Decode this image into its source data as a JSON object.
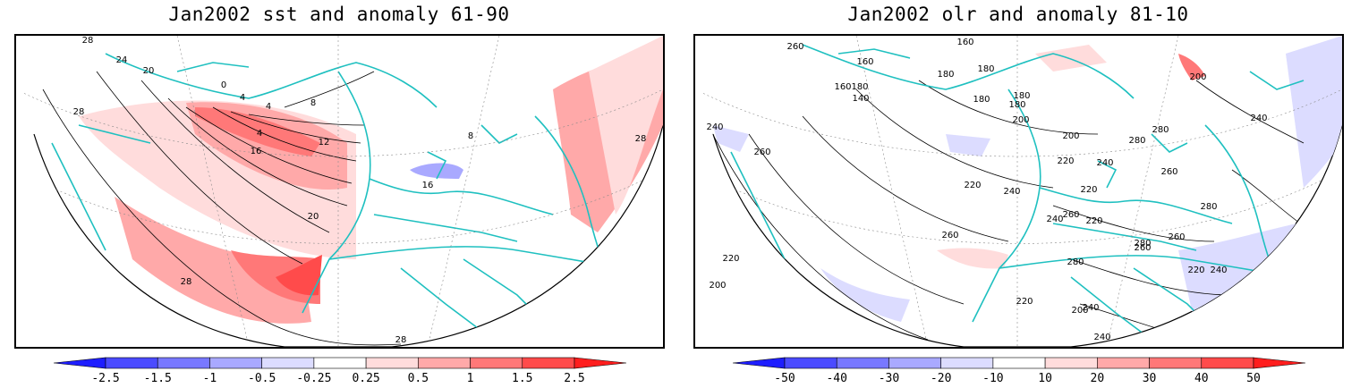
{
  "colors": {
    "coast": "#1fc0c0",
    "contour": "#000000",
    "grid": "#8a8a8a"
  },
  "panels": [
    {
      "id": "sst",
      "title": "Jan2002 sst and anomaly 61-90",
      "colorbar": {
        "labels": [
          "-2.5",
          "-1.5",
          "-1",
          "-0.5",
          "-0.25",
          "0.25",
          "0.5",
          "1",
          "1.5",
          "2.5"
        ],
        "colors": [
          "#1e1eff",
          "#4b4bff",
          "#7878ff",
          "#a9a9ff",
          "#dcdcff",
          "#ffffff",
          "#ffdcdc",
          "#ffa9a9",
          "#ff7878",
          "#ff4b4b",
          "#ff1e1e"
        ]
      },
      "contour_labels": [
        "28",
        "24",
        "20",
        "0",
        "4",
        "4",
        "8",
        "4",
        "16",
        "12",
        "20",
        "28",
        "28",
        "28",
        "16",
        "8",
        "28"
      ]
    },
    {
      "id": "olr",
      "title": "Jan2002 olr and anomaly 81-10",
      "colorbar": {
        "labels": [
          "-50",
          "-40",
          "-30",
          "-20",
          "-10",
          "10",
          "20",
          "30",
          "40",
          "50"
        ],
        "colors": [
          "#1e1eff",
          "#4b4bff",
          "#7878ff",
          "#a9a9ff",
          "#dcdcff",
          "#ffffff",
          "#ffdcdc",
          "#ffa9a9",
          "#ff7878",
          "#ff4b4b",
          "#ff1e1e"
        ]
      },
      "contour_labels": [
        "260",
        "160",
        "180",
        "160",
        "180",
        "180",
        "160",
        "140",
        "180",
        "180",
        "200",
        "240",
        "260",
        "200",
        "220",
        "240",
        "220",
        "260",
        "260",
        "240",
        "240",
        "280",
        "260",
        "220",
        "200",
        "220",
        "260",
        "280",
        "280",
        "260",
        "240",
        "220",
        "200",
        "240",
        "220",
        "180",
        "200",
        "280",
        "220",
        "240",
        "280",
        "240"
      ]
    }
  ]
}
